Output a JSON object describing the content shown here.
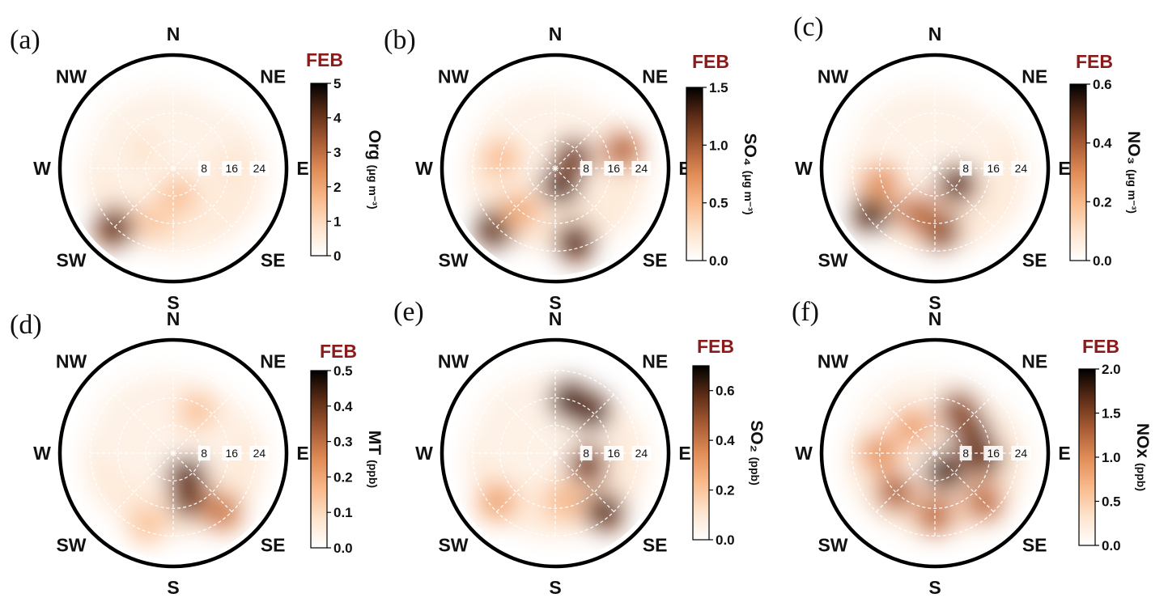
{
  "figure": {
    "month_label": "FEB",
    "month_color": "#8b1a1a",
    "directions": [
      "N",
      "NE",
      "E",
      "SE",
      "S",
      "SW",
      "W",
      "NW"
    ],
    "radial_labels": [
      "8",
      "16",
      "24"
    ],
    "colormap": [
      "#ffffff",
      "#fde3cc",
      "#f9b98a",
      "#e08c57",
      "#a65a34",
      "#5c2c16",
      "#000000"
    ]
  },
  "chart_data": [
    {
      "type": "heatmap",
      "panel": "(a)",
      "month": "FEB",
      "colorbar_label": "Org",
      "colorbar_unit": "(μg m⁻³)",
      "colorbar_ticks": [
        "0",
        "1",
        "2",
        "3",
        "4",
        "5"
      ],
      "vmin": 0,
      "vmax": 5,
      "radial_ticks": [
        8,
        16,
        24
      ],
      "hotspots": [
        {
          "dir_deg": 225,
          "ws": 24,
          "value": 4.5
        },
        {
          "dir_deg": 170,
          "ws": 8,
          "value": 1.6
        },
        {
          "dir_deg": 200,
          "ws": 16,
          "value": 1.4
        },
        {
          "dir_deg": 300,
          "ws": 10,
          "value": 0.8
        },
        {
          "dir_deg": 90,
          "ws": 16,
          "value": 0.8
        }
      ]
    },
    {
      "type": "heatmap",
      "panel": "(b)",
      "month": "FEB",
      "colorbar_label": "SO₄",
      "colorbar_unit": "(μg m⁻³)",
      "colorbar_ticks": [
        "0.0",
        "0.5",
        "1.0",
        "1.5"
      ],
      "vmin": 0,
      "vmax": 1.5,
      "radial_ticks": [
        8,
        16,
        24
      ],
      "hotspots": [
        {
          "dir_deg": 160,
          "ws": 5,
          "value": 1.5
        },
        {
          "dir_deg": 60,
          "ws": 6,
          "value": 1.3
        },
        {
          "dir_deg": 225,
          "ws": 24,
          "value": 1.5
        },
        {
          "dir_deg": 165,
          "ws": 22,
          "value": 1.4
        },
        {
          "dir_deg": 75,
          "ws": 20,
          "value": 1.0
        },
        {
          "dir_deg": 220,
          "ws": 16,
          "value": 0.6
        },
        {
          "dir_deg": 280,
          "ws": 16,
          "value": 0.5
        }
      ]
    },
    {
      "type": "heatmap",
      "panel": "(c)",
      "month": "FEB",
      "colorbar_label": "NO₃",
      "colorbar_unit": "(μg m⁻³)",
      "colorbar_ticks": [
        "0.0",
        "0.2",
        "0.4",
        "0.6"
      ],
      "vmin": 0,
      "vmax": 0.6,
      "radial_ticks": [
        8,
        16,
        24
      ],
      "hotspots": [
        {
          "dir_deg": 235,
          "ws": 22,
          "value": 0.6
        },
        {
          "dir_deg": 125,
          "ws": 8,
          "value": 0.55
        },
        {
          "dir_deg": 175,
          "ws": 18,
          "value": 0.5
        },
        {
          "dir_deg": 200,
          "ws": 14,
          "value": 0.4
        },
        {
          "dir_deg": 255,
          "ws": 16,
          "value": 0.3
        }
      ]
    },
    {
      "type": "heatmap",
      "panel": "(d)",
      "month": "FEB",
      "colorbar_label": "MT",
      "colorbar_unit": "(ppb)",
      "colorbar_ticks": [
        "0.0",
        "0.1",
        "0.2",
        "0.3",
        "0.4",
        "0.5"
      ],
      "vmin": 0,
      "vmax": 0.5,
      "radial_ticks": [
        8,
        16,
        24
      ],
      "hotspots": [
        {
          "dir_deg": 150,
          "ws": 8,
          "value": 0.5
        },
        {
          "dir_deg": 160,
          "ws": 14,
          "value": 0.45
        },
        {
          "dir_deg": 140,
          "ws": 22,
          "value": 0.3
        },
        {
          "dir_deg": 30,
          "ws": 14,
          "value": 0.15
        },
        {
          "dir_deg": 200,
          "ws": 22,
          "value": 0.15
        }
      ]
    },
    {
      "type": "heatmap",
      "panel": "(e)",
      "month": "FEB",
      "colorbar_label": "SO₂",
      "colorbar_unit": "(ppb)",
      "colorbar_ticks": [
        "0.0",
        "0.2",
        "0.4",
        "0.6"
      ],
      "vmin": 0,
      "vmax": 0.7,
      "radial_ticks": [
        8,
        16,
        24
      ],
      "hotspots": [
        {
          "dir_deg": 40,
          "ws": 16,
          "value": 0.7
        },
        {
          "dir_deg": 15,
          "ws": 16,
          "value": 0.7
        },
        {
          "dir_deg": 110,
          "ws": 10,
          "value": 0.6
        },
        {
          "dir_deg": 140,
          "ws": 22,
          "value": 0.65
        },
        {
          "dir_deg": 230,
          "ws": 22,
          "value": 0.3
        },
        {
          "dir_deg": 170,
          "ws": 14,
          "value": 0.25
        }
      ]
    },
    {
      "type": "heatmap",
      "panel": "(f)",
      "month": "FEB",
      "colorbar_label": "NOx",
      "colorbar_unit": "(ppb)",
      "colorbar_ticks": [
        "0.0",
        "0.5",
        "1.0",
        "1.5",
        "2.0"
      ],
      "vmin": 0,
      "vmax": 2.0,
      "radial_ticks": [
        8,
        16,
        24
      ],
      "hotspots": [
        {
          "dir_deg": 60,
          "ws": 12,
          "value": 2.0
        },
        {
          "dir_deg": 150,
          "ws": 6,
          "value": 2.0
        },
        {
          "dir_deg": 95,
          "ws": 14,
          "value": 1.8
        },
        {
          "dir_deg": 30,
          "ws": 14,
          "value": 1.6
        },
        {
          "dir_deg": 225,
          "ws": 16,
          "value": 1.4
        },
        {
          "dir_deg": 180,
          "ws": 18,
          "value": 1.3
        },
        {
          "dir_deg": 135,
          "ws": 20,
          "value": 1.3
        },
        {
          "dir_deg": 270,
          "ws": 16,
          "value": 1.0
        },
        {
          "dir_deg": 320,
          "ws": 10,
          "value": 0.9
        }
      ]
    }
  ]
}
